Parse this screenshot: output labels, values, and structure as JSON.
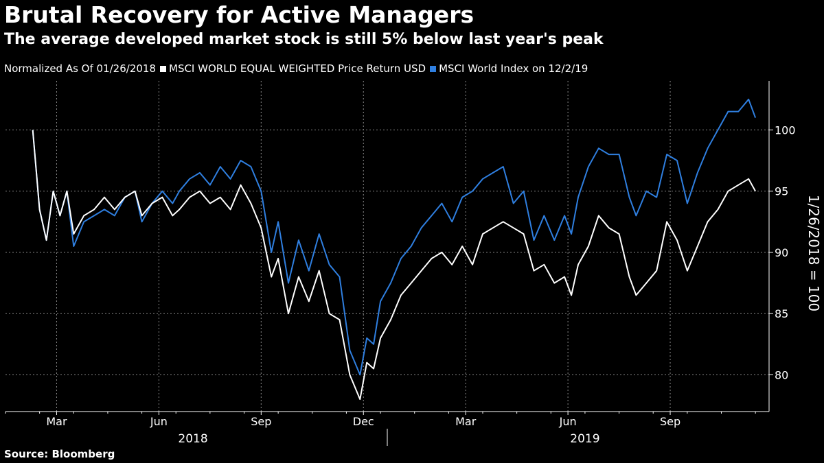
{
  "header": {
    "title": "Brutal Recovery for Active Managers",
    "subtitle": "The average developed market stock is still 5% below last year's peak"
  },
  "legend": {
    "note": "Normalized As Of 01/26/2018",
    "items": [
      {
        "label": "MSCI WORLD EQUAL WEIGHTED Price Return USD",
        "color": "#ffffff"
      },
      {
        "label": "MSCI World Index  on 12/2/19",
        "color": "#2f7fe0"
      }
    ]
  },
  "footer": {
    "source": "Source: Bloomberg"
  },
  "chart_data": {
    "type": "line",
    "title": "Brutal Recovery for Active Managers",
    "ylabel": "1/26/2018 = 100",
    "ylim": [
      77,
      104
    ],
    "yticks": [
      80,
      85,
      90,
      95,
      100
    ],
    "xlim": [
      0,
      22.4
    ],
    "x_month_ticks": [
      {
        "x": 1.5,
        "label": "Mar"
      },
      {
        "x": 4.5,
        "label": "Jun"
      },
      {
        "x": 7.5,
        "label": "Sep"
      },
      {
        "x": 10.5,
        "label": "Dec"
      },
      {
        "x": 13.5,
        "label": "Mar"
      },
      {
        "x": 16.5,
        "label": "Jun"
      },
      {
        "x": 19.5,
        "label": "Sep"
      }
    ],
    "x_year_labels": [
      {
        "x": 5.5,
        "label": "2018"
      },
      {
        "x": 17.0,
        "label": "2019"
      }
    ],
    "x_year_divider": 11.2,
    "x_units": "months since 2018-01-01",
    "series": [
      {
        "name": "MSCI WORLD EQUAL WEIGHTED Price Return USD",
        "color": "#ffffff",
        "x": [
          0.8,
          1.0,
          1.2,
          1.4,
          1.6,
          1.8,
          2.0,
          2.3,
          2.6,
          2.9,
          3.2,
          3.5,
          3.8,
          4.0,
          4.3,
          4.6,
          4.9,
          5.1,
          5.4,
          5.7,
          6.0,
          6.3,
          6.6,
          6.9,
          7.2,
          7.5,
          7.8,
          8.0,
          8.3,
          8.6,
          8.9,
          9.2,
          9.5,
          9.8,
          10.1,
          10.4,
          10.6,
          10.8,
          11.0,
          11.3,
          11.6,
          11.9,
          12.2,
          12.5,
          12.8,
          13.1,
          13.4,
          13.7,
          14.0,
          14.3,
          14.6,
          14.9,
          15.2,
          15.5,
          15.8,
          16.1,
          16.4,
          16.6,
          16.8,
          17.1,
          17.4,
          17.7,
          18.0,
          18.3,
          18.5,
          18.8,
          19.1,
          19.4,
          19.7,
          20.0,
          20.3,
          20.6,
          20.9,
          21.2,
          21.5,
          21.8,
          22.0
        ],
        "values": [
          100,
          93.5,
          91.0,
          95.0,
          93.0,
          95.0,
          91.5,
          93.0,
          93.5,
          94.5,
          93.5,
          94.5,
          95.0,
          93.0,
          94.0,
          94.5,
          93.0,
          93.5,
          94.5,
          95.0,
          94.0,
          94.5,
          93.5,
          95.5,
          94.0,
          92.0,
          88.0,
          89.5,
          85.0,
          88.0,
          86.0,
          88.5,
          85.0,
          84.5,
          80.0,
          78.0,
          81.0,
          80.5,
          83.0,
          84.5,
          86.5,
          87.5,
          88.5,
          89.5,
          90.0,
          89.0,
          90.5,
          89.0,
          91.5,
          92.0,
          92.5,
          92.0,
          91.5,
          88.5,
          89.0,
          87.5,
          88.0,
          86.5,
          89.0,
          90.5,
          93.0,
          92.0,
          91.5,
          88.0,
          86.5,
          87.5,
          88.5,
          92.5,
          91.0,
          88.5,
          90.5,
          92.5,
          93.5,
          95.0,
          95.5,
          96.0,
          95.0
        ]
      },
      {
        "name": "MSCI World Index  on 12/2/19",
        "color": "#2f7fe0",
        "x": [
          0.8,
          1.0,
          1.2,
          1.4,
          1.6,
          1.8,
          2.0,
          2.3,
          2.6,
          2.9,
          3.2,
          3.5,
          3.8,
          4.0,
          4.3,
          4.6,
          4.9,
          5.1,
          5.4,
          5.7,
          6.0,
          6.3,
          6.6,
          6.9,
          7.2,
          7.5,
          7.8,
          8.0,
          8.3,
          8.6,
          8.9,
          9.2,
          9.5,
          9.8,
          10.1,
          10.4,
          10.6,
          10.8,
          11.0,
          11.3,
          11.6,
          11.9,
          12.2,
          12.5,
          12.8,
          13.1,
          13.4,
          13.7,
          14.0,
          14.3,
          14.6,
          14.9,
          15.2,
          15.5,
          15.8,
          16.1,
          16.4,
          16.6,
          16.8,
          17.1,
          17.4,
          17.7,
          18.0,
          18.3,
          18.5,
          18.8,
          19.1,
          19.4,
          19.7,
          20.0,
          20.3,
          20.6,
          20.9,
          21.2,
          21.5,
          21.8,
          22.0
        ],
        "values": [
          100,
          93.5,
          91.0,
          95.0,
          93.0,
          95.0,
          90.5,
          92.5,
          93.0,
          93.5,
          93.0,
          94.5,
          95.0,
          92.5,
          94.0,
          95.0,
          94.0,
          95.0,
          96.0,
          96.5,
          95.5,
          97.0,
          96.0,
          97.5,
          97.0,
          95.0,
          90.0,
          92.5,
          87.5,
          91.0,
          88.5,
          91.5,
          89.0,
          88.0,
          82.0,
          80.0,
          83.0,
          82.5,
          86.0,
          87.5,
          89.5,
          90.5,
          92.0,
          93.0,
          94.0,
          92.5,
          94.5,
          95.0,
          96.0,
          96.5,
          97.0,
          94.0,
          95.0,
          91.0,
          93.0,
          91.0,
          93.0,
          91.5,
          94.5,
          97.0,
          98.5,
          98.0,
          98.0,
          94.5,
          93.0,
          95.0,
          94.5,
          98.0,
          97.5,
          94.0,
          96.5,
          98.5,
          100.0,
          101.5,
          101.5,
          102.5,
          101.0
        ]
      }
    ]
  }
}
